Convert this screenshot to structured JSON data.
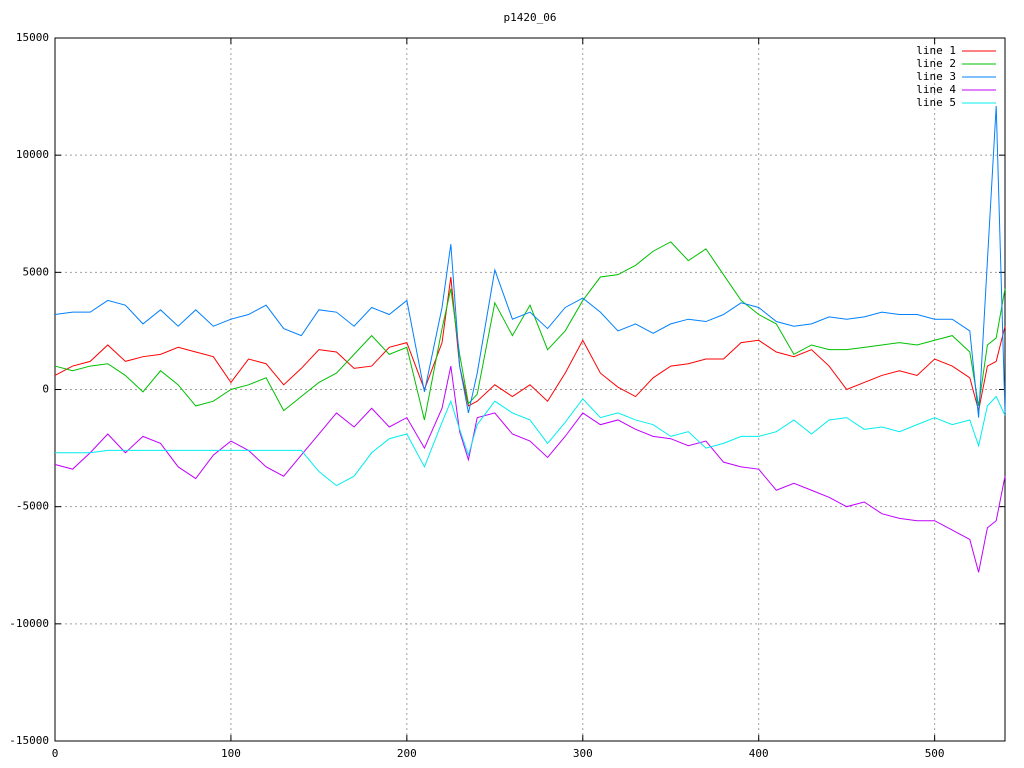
{
  "chart_data": {
    "type": "line",
    "title": "p1420_06",
    "x": [
      0,
      10,
      20,
      30,
      40,
      50,
      60,
      70,
      80,
      90,
      100,
      110,
      120,
      130,
      140,
      150,
      160,
      170,
      180,
      190,
      200,
      210,
      220,
      225,
      230,
      235,
      240,
      250,
      260,
      270,
      280,
      290,
      300,
      310,
      320,
      330,
      340,
      350,
      360,
      370,
      380,
      390,
      400,
      410,
      420,
      430,
      440,
      450,
      460,
      470,
      480,
      490,
      500,
      510,
      520,
      525,
      530,
      535,
      540
    ],
    "series": [
      {
        "name": "line 1",
        "color": "#ff0000",
        "values": [
          600,
          1000,
          1200,
          1900,
          1200,
          1400,
          1500,
          1800,
          1600,
          1400,
          300,
          1300,
          1100,
          200,
          900,
          1700,
          1600,
          900,
          1000,
          1800,
          2000,
          0,
          2000,
          4800,
          1000,
          -700,
          -500,
          200,
          -300,
          200,
          -500,
          700,
          2100,
          700,
          100,
          -300,
          500,
          1000,
          1100,
          1300,
          1300,
          2000,
          2100,
          1600,
          1400,
          1700,
          1000,
          0,
          300,
          600,
          800,
          600,
          1300,
          1000,
          500,
          -900,
          1000,
          1200,
          2700
        ]
      },
      {
        "name": "line 2",
        "color": "#00c000",
        "values": [
          1000,
          800,
          1000,
          1100,
          600,
          -100,
          800,
          200,
          -700,
          -500,
          0,
          200,
          500,
          -900,
          -300,
          300,
          700,
          1500,
          2300,
          1500,
          1800,
          -1300,
          2600,
          4300,
          1500,
          -600,
          -200,
          3700,
          2300,
          3600,
          1700,
          2500,
          3800,
          4800,
          4900,
          5300,
          5900,
          6300,
          5500,
          6000,
          4900,
          3800,
          3200,
          2800,
          1500,
          1900,
          1700,
          1700,
          1800,
          1900,
          2000,
          1900,
          2100,
          2300,
          1600,
          -700,
          1900,
          2200,
          4300
        ]
      },
      {
        "name": "line 3",
        "color": "#0080ff",
        "values": [
          3200,
          3300,
          3300,
          3800,
          3600,
          2800,
          3400,
          2700,
          3400,
          2700,
          3000,
          3200,
          3600,
          2600,
          2300,
          3400,
          3300,
          2700,
          3500,
          3200,
          3800,
          -100,
          3500,
          6200,
          1000,
          -1000,
          700,
          5100,
          3000,
          3300,
          2600,
          3500,
          3900,
          3300,
          2500,
          2800,
          2400,
          2800,
          3000,
          2900,
          3200,
          3700,
          3500,
          2900,
          2700,
          2800,
          3100,
          3000,
          3100,
          3300,
          3200,
          3200,
          3000,
          3000,
          2500,
          -1200,
          5500,
          12100,
          -1000
        ]
      },
      {
        "name": "line 4",
        "color": "#c000ff",
        "values": [
          -3200,
          -3400,
          -2700,
          -1900,
          -2700,
          -2000,
          -2300,
          -3300,
          -3800,
          -2800,
          -2200,
          -2600,
          -3300,
          -3700,
          -2800,
          -1900,
          -1000,
          -1600,
          -800,
          -1600,
          -1200,
          -2500,
          -800,
          1000,
          -1800,
          -3000,
          -1200,
          -1000,
          -1900,
          -2200,
          -2900,
          -2000,
          -1000,
          -1500,
          -1300,
          -1700,
          -2000,
          -2100,
          -2400,
          -2200,
          -3100,
          -3300,
          -3400,
          -4300,
          -4000,
          -4300,
          -4600,
          -5000,
          -4800,
          -5300,
          -5500,
          -5600,
          -5600,
          -6000,
          -6400,
          -7800,
          -5900,
          -5600,
          -3700
        ]
      },
      {
        "name": "line 5",
        "color": "#00eeee",
        "values": [
          -2700,
          -2700,
          -2700,
          -2600,
          -2600,
          -2600,
          -2600,
          -2600,
          -2600,
          -2600,
          -2600,
          -2600,
          -2600,
          -2600,
          -2600,
          -3500,
          -4100,
          -3700,
          -2700,
          -2100,
          -1900,
          -3300,
          -1400,
          -500,
          -1700,
          -2800,
          -1500,
          -500,
          -1000,
          -1300,
          -2300,
          -1400,
          -400,
          -1200,
          -1000,
          -1300,
          -1500,
          -2000,
          -1800,
          -2500,
          -2300,
          -2000,
          -2000,
          -1800,
          -1300,
          -1900,
          -1300,
          -1200,
          -1700,
          -1600,
          -1800,
          -1500,
          -1200,
          -1500,
          -1300,
          -2400,
          -700,
          -300,
          -1100
        ]
      }
    ],
    "xlim": [
      0,
      540
    ],
    "xticks": [
      0,
      100,
      200,
      300,
      400,
      500
    ],
    "ylim": [
      -15000,
      15000
    ],
    "yticks": [
      -15000,
      -10000,
      -5000,
      0,
      5000,
      10000,
      15000
    ],
    "grid": true,
    "legend": "top-right"
  }
}
